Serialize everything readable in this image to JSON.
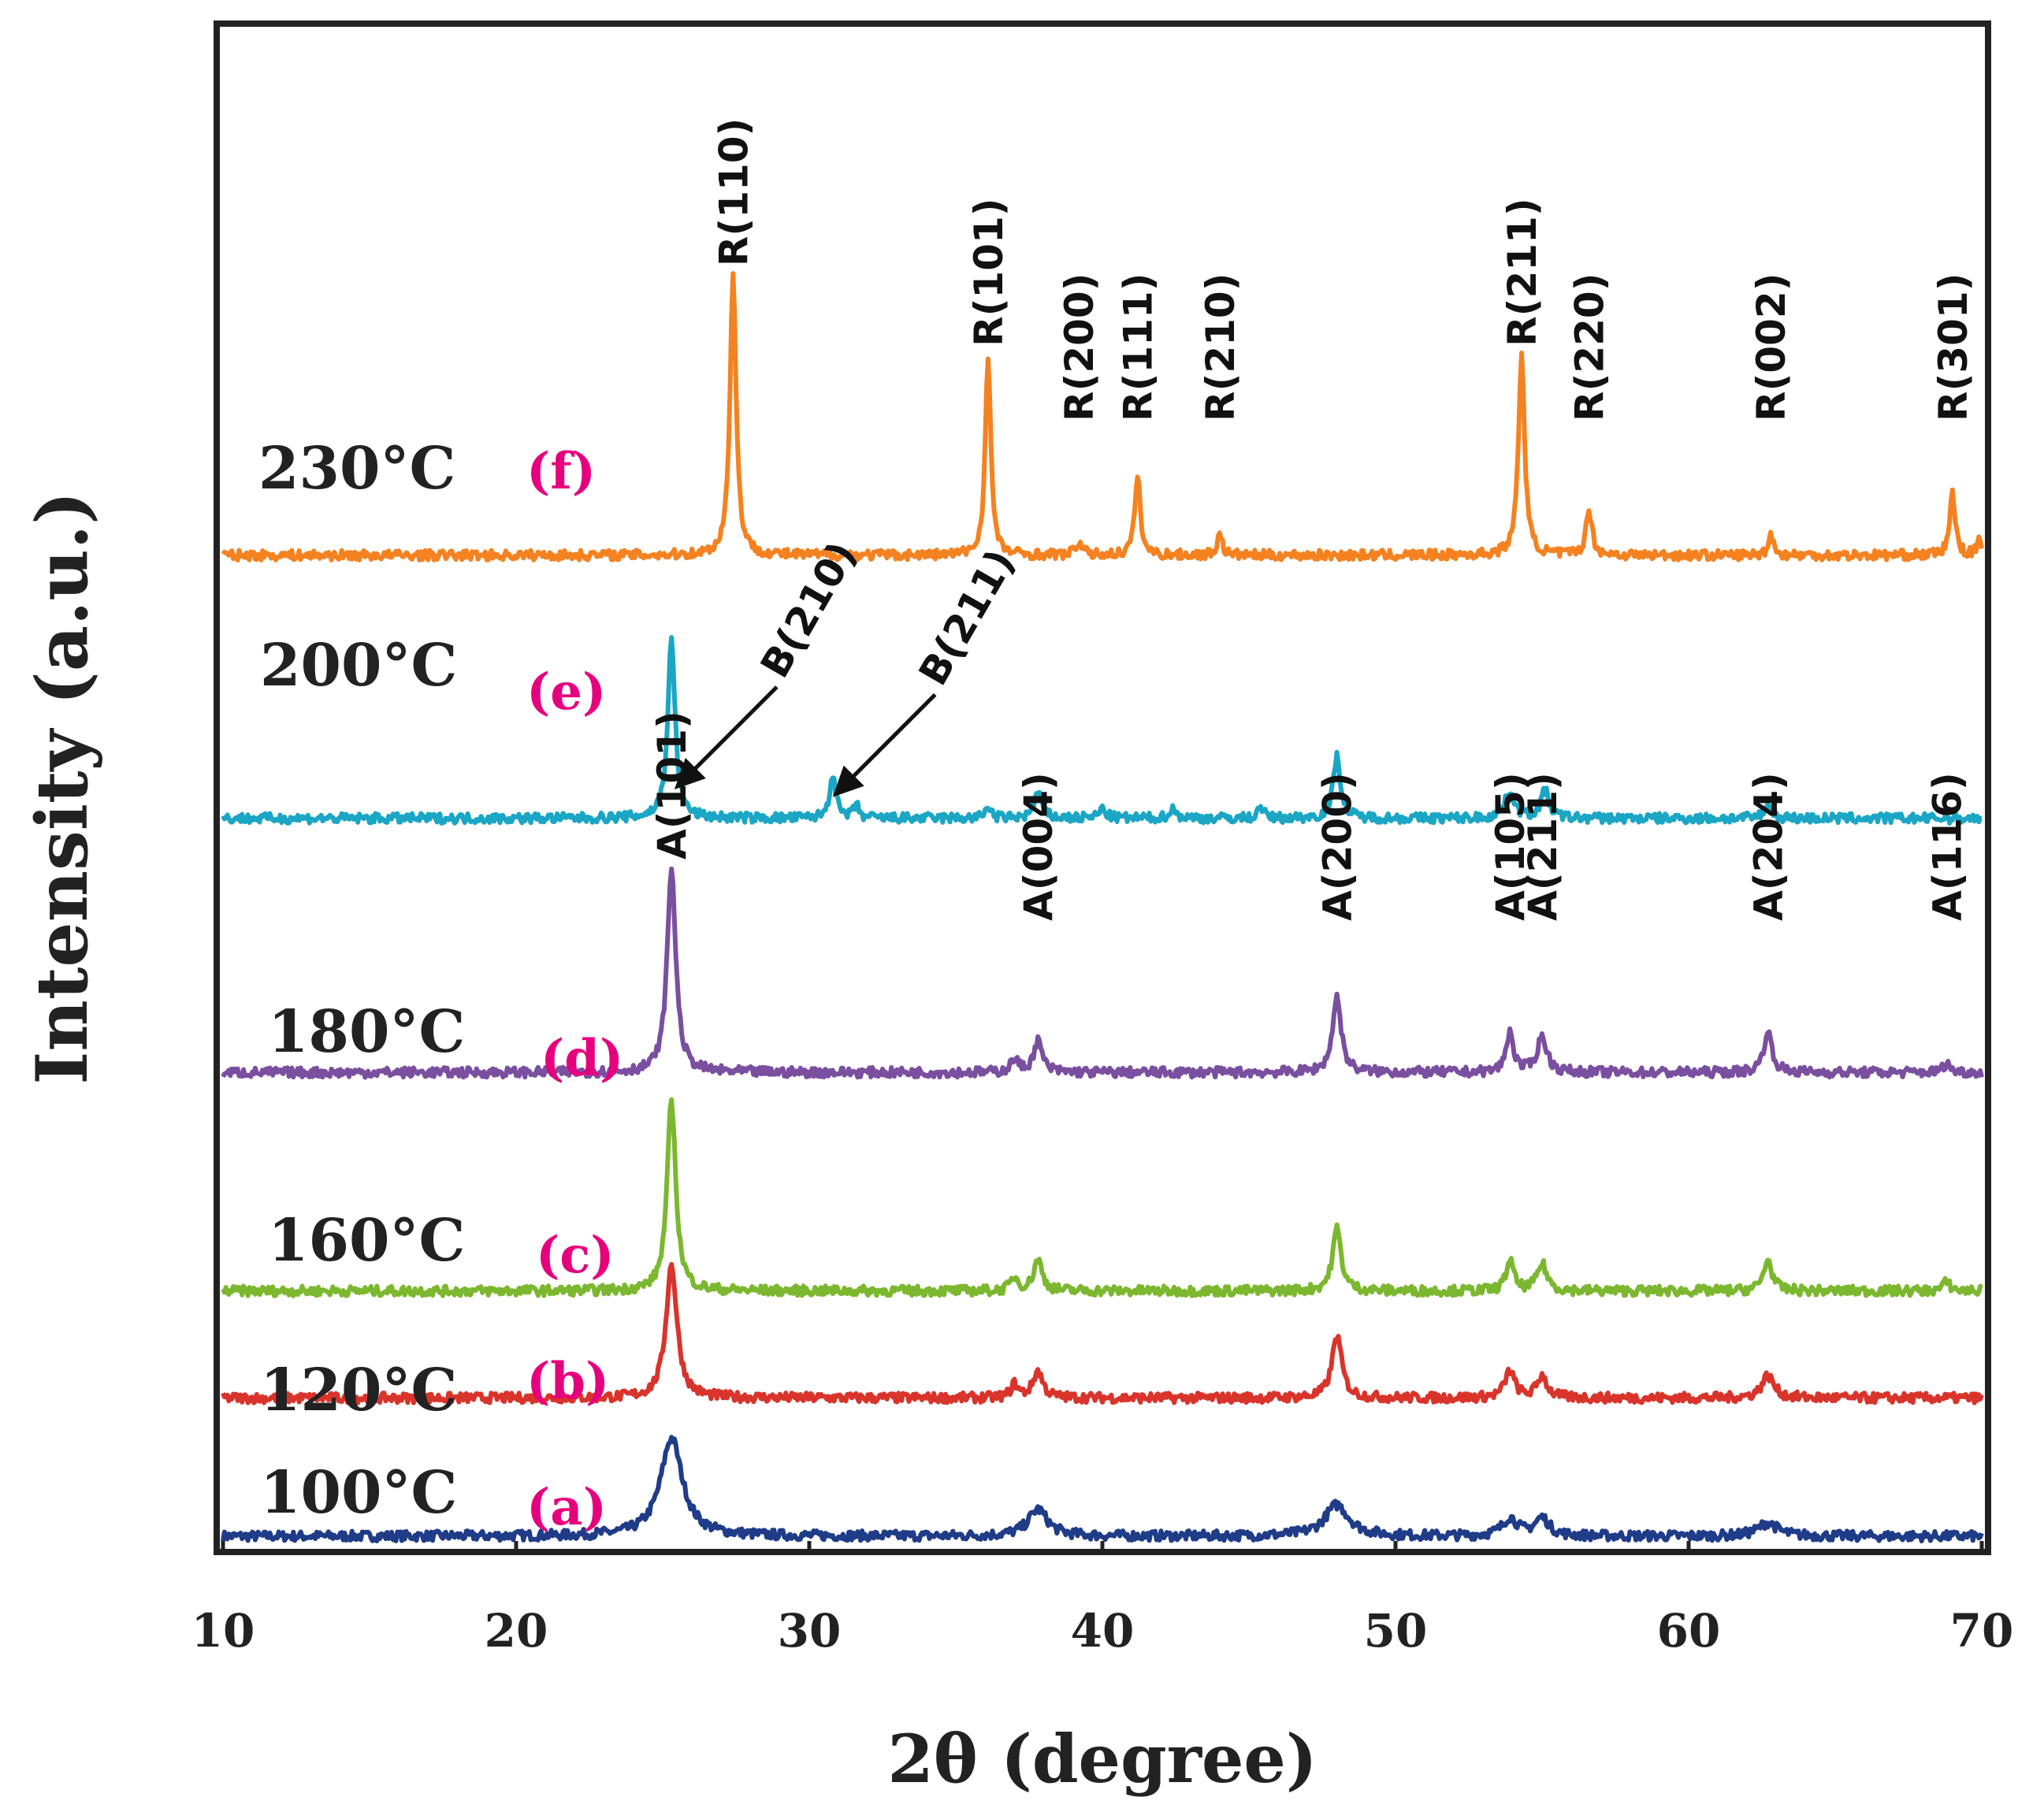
{
  "chart_data": {
    "type": "line",
    "title": "",
    "xlabel": "2θ (degree)",
    "ylabel": "Intensity (a.u.)",
    "xlim": [
      10,
      70
    ],
    "xticks": [
      "10",
      "20",
      "30",
      "40",
      "50",
      "60",
      "70"
    ],
    "yticks": "none",
    "series": [
      {
        "name": "100°C",
        "letter": "(a)",
        "color": "#1f3c88",
        "baseline": 0.0,
        "peaks": [
          {
            "x": 25.3,
            "h": 0.22,
            "w": 0.9
          },
          {
            "x": 37.8,
            "h": 0.06,
            "w": 0.8
          },
          {
            "x": 48.0,
            "h": 0.07,
            "w": 1.0
          },
          {
            "x": 53.9,
            "h": 0.04,
            "w": 0.6
          },
          {
            "x": 55.0,
            "h": 0.04,
            "w": 0.6
          },
          {
            "x": 62.7,
            "h": 0.03,
            "w": 0.8
          }
        ]
      },
      {
        "name": "120°C",
        "letter": "(b)",
        "color": "#d9342b",
        "baseline": 0.31,
        "peaks": [
          {
            "x": 25.3,
            "h": 0.3,
            "w": 0.45
          },
          {
            "x": 37.0,
            "h": 0.03,
            "w": 0.3
          },
          {
            "x": 37.8,
            "h": 0.06,
            "w": 0.4
          },
          {
            "x": 48.0,
            "h": 0.14,
            "w": 0.4
          },
          {
            "x": 53.9,
            "h": 0.06,
            "w": 0.4
          },
          {
            "x": 55.0,
            "h": 0.05,
            "w": 0.4
          },
          {
            "x": 62.7,
            "h": 0.05,
            "w": 0.5
          }
        ]
      },
      {
        "name": "160°C",
        "letter": "(c)",
        "color": "#7cb82f",
        "baseline": 0.55,
        "peaks": [
          {
            "x": 25.3,
            "h": 0.43,
            "w": 0.35
          },
          {
            "x": 37.0,
            "h": 0.03,
            "w": 0.3
          },
          {
            "x": 37.8,
            "h": 0.07,
            "w": 0.35
          },
          {
            "x": 48.0,
            "h": 0.14,
            "w": 0.35
          },
          {
            "x": 53.9,
            "h": 0.07,
            "w": 0.3
          },
          {
            "x": 55.0,
            "h": 0.06,
            "w": 0.4
          },
          {
            "x": 62.7,
            "h": 0.07,
            "w": 0.35
          },
          {
            "x": 68.8,
            "h": 0.02,
            "w": 0.3
          }
        ]
      },
      {
        "name": "180°C",
        "letter": "(d)",
        "color": "#7a4fa0",
        "baseline": 1.04,
        "peaks": [
          {
            "x": 25.3,
            "h": 0.46,
            "w": 0.35
          },
          {
            "x": 37.0,
            "h": 0.03,
            "w": 0.3
          },
          {
            "x": 37.8,
            "h": 0.07,
            "w": 0.35
          },
          {
            "x": 48.0,
            "h": 0.17,
            "w": 0.35
          },
          {
            "x": 53.9,
            "h": 0.09,
            "w": 0.3
          },
          {
            "x": 55.0,
            "h": 0.08,
            "w": 0.4
          },
          {
            "x": 62.7,
            "h": 0.09,
            "w": 0.35
          },
          {
            "x": 68.8,
            "h": 0.02,
            "w": 0.3
          }
        ]
      },
      {
        "name": "200°C",
        "letter": "(e)",
        "color": "#1aa6c4",
        "baseline": 1.61,
        "peaks": [
          {
            "x": 25.3,
            "h": 0.4,
            "w": 0.3
          },
          {
            "x": 30.8,
            "h": 0.1,
            "w": 0.25
          },
          {
            "x": 31.6,
            "h": 0.03,
            "w": 0.2
          },
          {
            "x": 36.1,
            "h": 0.03,
            "w": 0.2
          },
          {
            "x": 37.8,
            "h": 0.06,
            "w": 0.3
          },
          {
            "x": 40.0,
            "h": 0.02,
            "w": 0.3
          },
          {
            "x": 42.4,
            "h": 0.02,
            "w": 0.3
          },
          {
            "x": 45.4,
            "h": 0.03,
            "w": 0.2
          },
          {
            "x": 48.0,
            "h": 0.14,
            "w": 0.3
          },
          {
            "x": 53.9,
            "h": 0.06,
            "w": 0.4
          },
          {
            "x": 55.1,
            "h": 0.06,
            "w": 0.35
          },
          {
            "x": 62.7,
            "h": 0.03,
            "w": 0.3
          }
        ]
      },
      {
        "name": "230°C",
        "letter": "(f)",
        "color": "#f58220",
        "baseline": 2.2,
        "peaks": [
          {
            "x": 27.4,
            "h": 0.63,
            "w": 0.25
          },
          {
            "x": 36.1,
            "h": 0.45,
            "w": 0.22
          },
          {
            "x": 39.2,
            "h": 0.03,
            "w": 0.25
          },
          {
            "x": 41.2,
            "h": 0.18,
            "w": 0.22
          },
          {
            "x": 44.0,
            "h": 0.05,
            "w": 0.2
          },
          {
            "x": 54.3,
            "h": 0.45,
            "w": 0.25
          },
          {
            "x": 56.6,
            "h": 0.1,
            "w": 0.25
          },
          {
            "x": 62.8,
            "h": 0.05,
            "w": 0.2
          },
          {
            "x": 69.0,
            "h": 0.14,
            "w": 0.22
          },
          {
            "x": 69.9,
            "h": 0.04,
            "w": 0.15
          }
        ]
      }
    ],
    "annotations": [
      {
        "text": "R(110)",
        "x": 27.4,
        "series": "230°C"
      },
      {
        "text": "R(101)",
        "x": 36.1,
        "series": "230°C"
      },
      {
        "text": "R(200)",
        "x": 39.2,
        "series": "230°C"
      },
      {
        "text": "R(111)",
        "x": 41.2,
        "series": "230°C"
      },
      {
        "text": "R(210)",
        "x": 44.0,
        "series": "230°C"
      },
      {
        "text": "R(211)",
        "x": 54.3,
        "series": "230°C"
      },
      {
        "text": "R(220)",
        "x": 56.6,
        "series": "230°C"
      },
      {
        "text": "R(002)",
        "x": 62.8,
        "series": "230°C"
      },
      {
        "text": "R(301)",
        "x": 69.0,
        "series": "230°C"
      },
      {
        "text": "B(210)",
        "x": 25.4,
        "series": "200°C",
        "arrow": true
      },
      {
        "text": "B(211)",
        "x": 30.8,
        "series": "200°C",
        "arrow": true
      },
      {
        "text": "A(101)",
        "x": 25.3,
        "series": "180°C"
      },
      {
        "text": "A(004)",
        "x": 37.8,
        "series": "180°C"
      },
      {
        "text": "A(200)",
        "x": 48.0,
        "series": "180°C"
      },
      {
        "text": "A(105)",
        "x": 53.9,
        "series": "180°C"
      },
      {
        "text": "A(211)",
        "x": 55.0,
        "series": "180°C"
      },
      {
        "text": "A(204)",
        "x": 62.7,
        "series": "180°C"
      },
      {
        "text": "A(116)",
        "x": 68.8,
        "series": "180°C"
      }
    ],
    "style": {
      "axis_color": "#222222",
      "letter_color": "#e6007e",
      "arrow_color": "#111111"
    }
  }
}
